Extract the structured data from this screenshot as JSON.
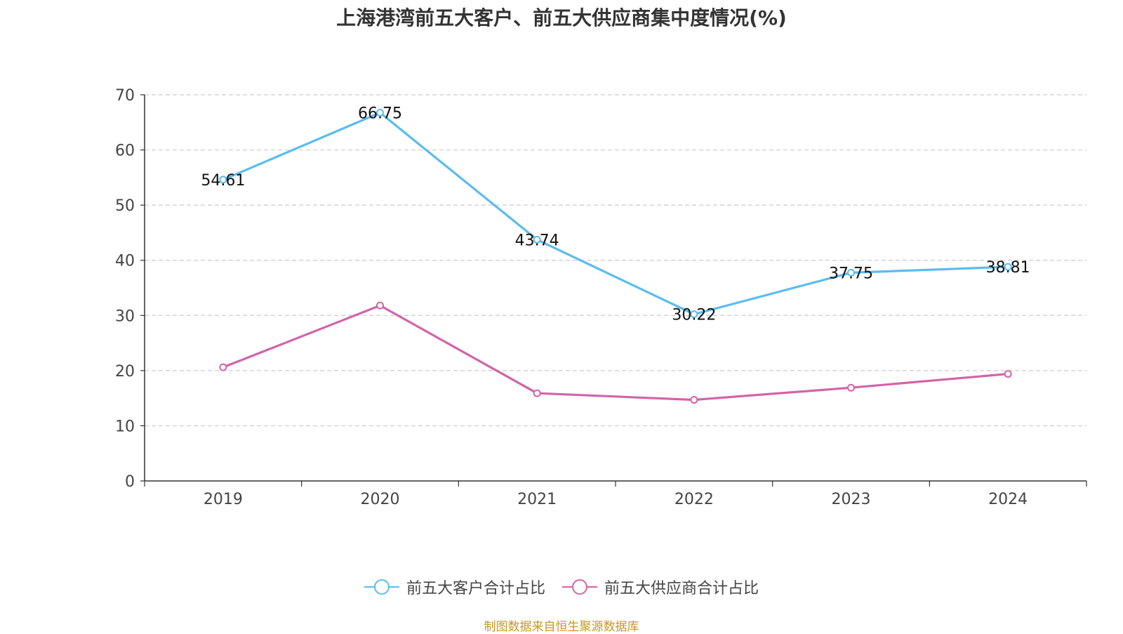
{
  "title": "上海港湾前五大客户、前五大供应商集中度情况(%)",
  "source": "制图数据来自恒生聚源数据库",
  "chart_data": {
    "type": "line",
    "categories": [
      "2019",
      "2020",
      "2021",
      "2022",
      "2023",
      "2024"
    ],
    "ylim": [
      0,
      70
    ],
    "yticks": [
      0,
      10,
      20,
      30,
      40,
      50,
      60,
      70
    ],
    "grid": true,
    "legend_position": "bottom",
    "series": [
      {
        "name": "前五大客户合计占比",
        "color": "#5bbcf0",
        "values": [
          54.61,
          66.75,
          43.74,
          30.22,
          37.75,
          38.81
        ],
        "show_labels": true
      },
      {
        "name": "前五大供应商合计占比",
        "color": "#d264a8",
        "values": [
          20.6,
          31.8,
          15.9,
          14.7,
          16.9,
          19.4
        ],
        "show_labels": false
      }
    ]
  }
}
